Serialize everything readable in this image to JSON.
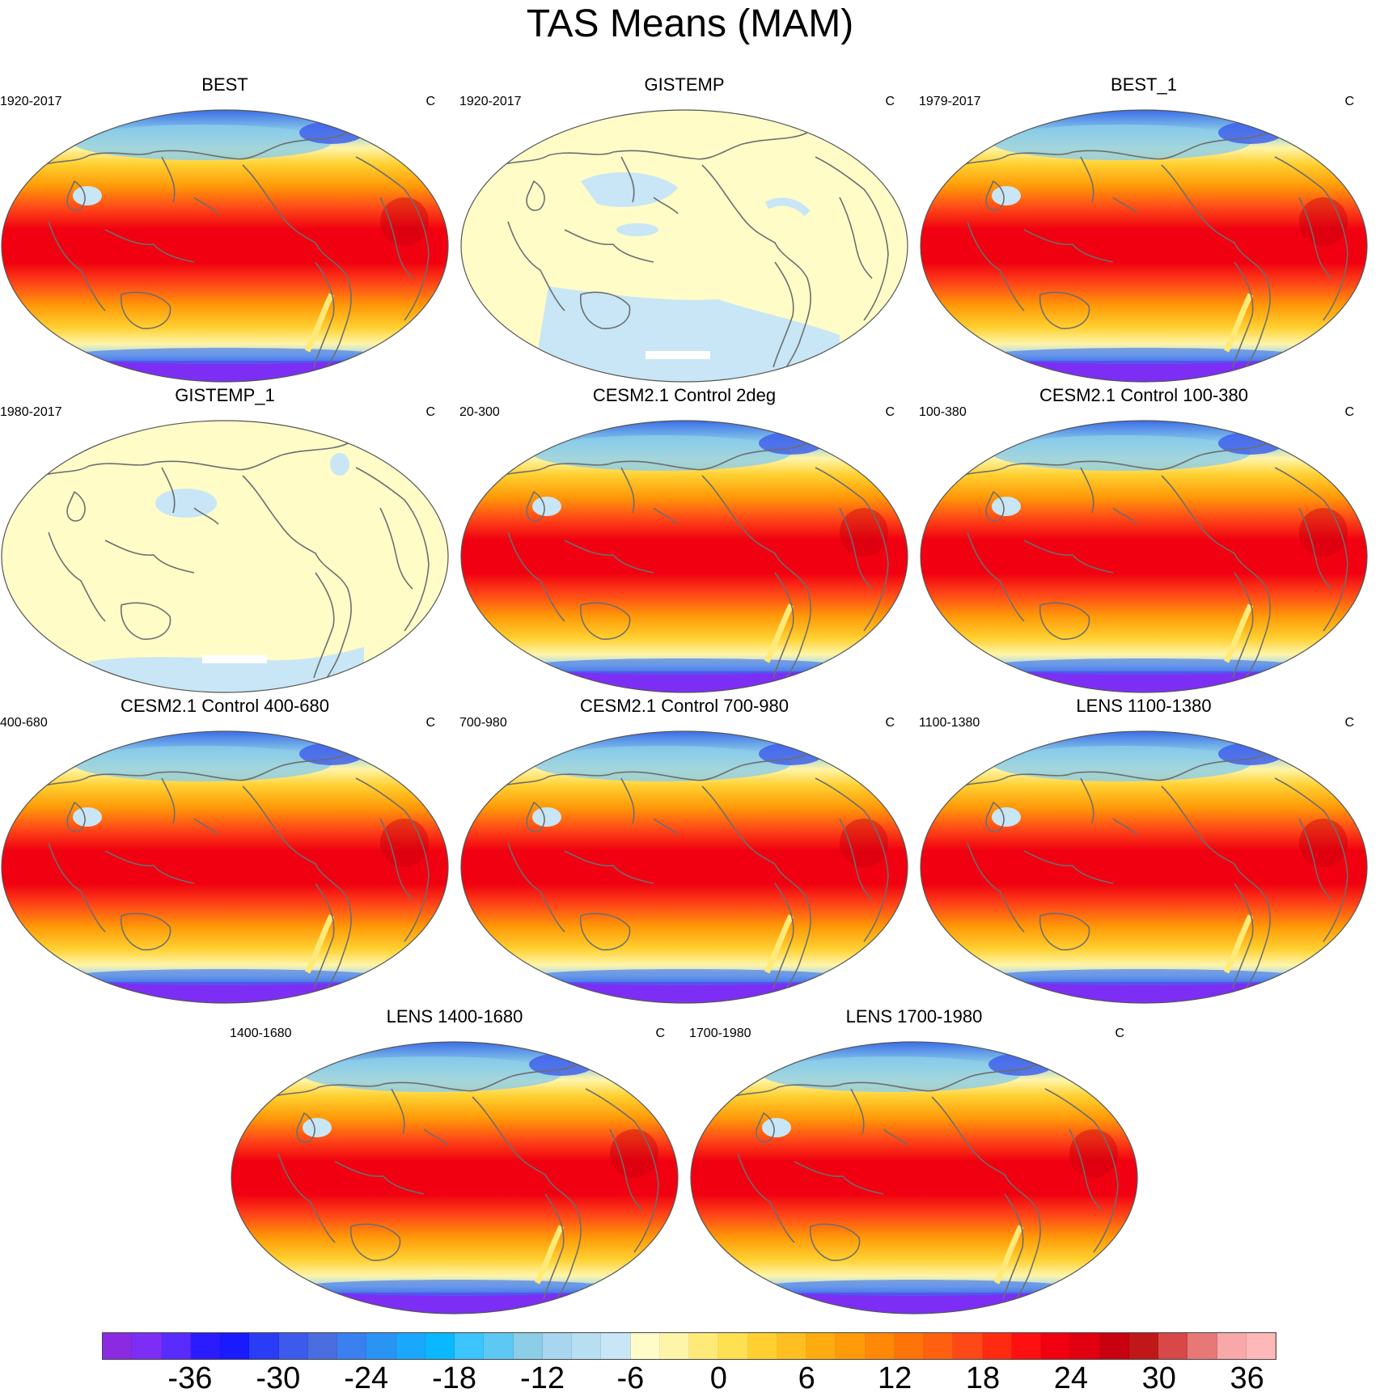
{
  "title": "TAS Means (MAM)",
  "colorbar": {
    "colors": [
      "#8a2be2",
      "#7d2ef5",
      "#5a2bff",
      "#2b1cff",
      "#1a1aff",
      "#2a3cf5",
      "#3c5aeb",
      "#4a6ee0",
      "#3a80f0",
      "#2a94f5",
      "#1aa8ff",
      "#0ab8ff",
      "#3cc4ff",
      "#5ec8f5",
      "#8ccde8",
      "#a8d6ee",
      "#b8def2",
      "#c8e6f5",
      "#fffcc8",
      "#fff5a8",
      "#ffea78",
      "#ffe050",
      "#ffd030",
      "#ffbf20",
      "#ffac10",
      "#ff9a08",
      "#ff8808",
      "#ff7408",
      "#ff6010",
      "#ff4818",
      "#ff2a10",
      "#ff1010",
      "#f00010",
      "#e00010",
      "#c80010",
      "#c01818",
      "#d84848",
      "#e87878",
      "#f8a8a8",
      "#ffb8b8"
    ],
    "tick_labels": [
      "-36",
      "-30",
      "-24",
      "-18",
      "-12",
      "-6",
      "0",
      "6",
      "12",
      "18",
      "24",
      "30",
      "36"
    ]
  },
  "panels": [
    {
      "title": "BEST",
      "period": "1920-2017",
      "units": "C",
      "style": "full"
    },
    {
      "title": "GISTEMP",
      "period": "1920-2017",
      "units": "C",
      "style": "anomaly"
    },
    {
      "title": "BEST_1",
      "period": "1979-2017",
      "units": "C",
      "style": "full"
    },
    {
      "title": "GISTEMP_1",
      "period": "1980-2017",
      "units": "C",
      "style": "anomaly"
    },
    {
      "title": "CESM2.1 Control 2deg",
      "period": "20-300",
      "units": "C",
      "style": "full"
    },
    {
      "title": "CESM2.1 Control 100-380",
      "period": "100-380",
      "units": "C",
      "style": "full"
    },
    {
      "title": "CESM2.1 Control 400-680",
      "period": "400-680",
      "units": "C",
      "style": "full"
    },
    {
      "title": "CESM2.1 Control 700-980",
      "period": "700-980",
      "units": "C",
      "style": "full"
    },
    {
      "title": "LENS 1100-1380",
      "period": "1100-1380",
      "units": "C",
      "style": "full"
    },
    {
      "title": "LENS 1400-1680",
      "period": "1400-1680",
      "units": "C",
      "style": "full"
    },
    {
      "title": "LENS 1700-1980",
      "period": "1700-1980",
      "units": "C",
      "style": "full"
    }
  ]
}
